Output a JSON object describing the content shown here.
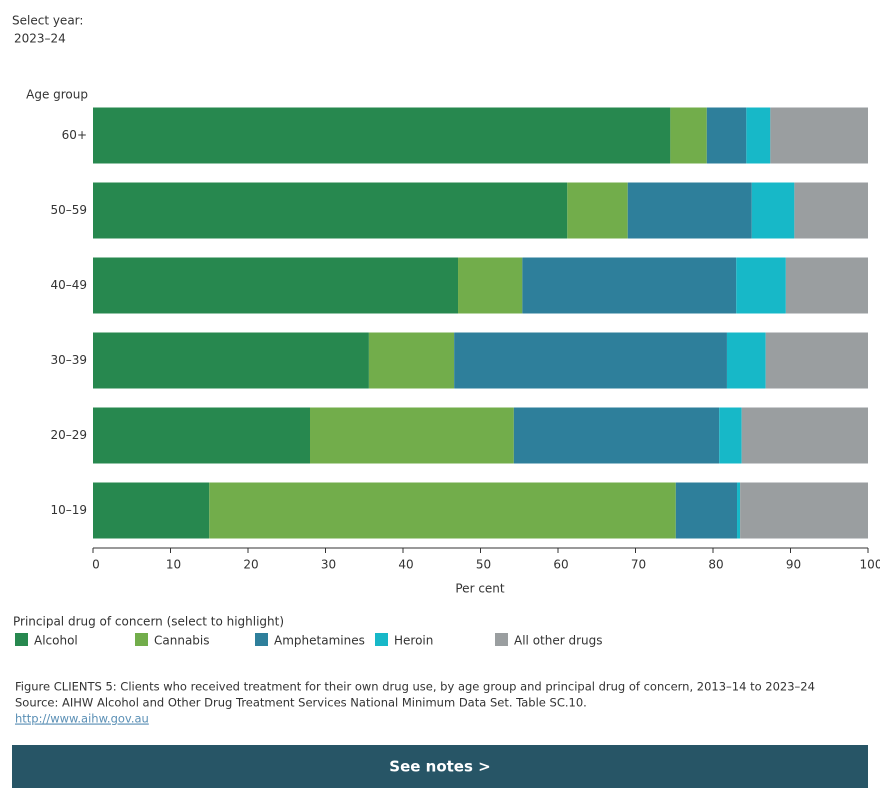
{
  "selector": {
    "label": "Select year:",
    "value": "2023–24"
  },
  "chart_data": {
    "type": "stacked_bar_horizontal",
    "ylabel": "Age group",
    "xlabel": "Per cent",
    "categories": [
      "60+",
      "50–59",
      "40–49",
      "30–39",
      "20–29",
      "10–19"
    ],
    "series": [
      {
        "name": "Alcohol",
        "color": "#27884f",
        "values": [
          74.5,
          61.2,
          47.1,
          35.6,
          28.0,
          15.0
        ]
      },
      {
        "name": "Cannabis",
        "color": "#72ad4b",
        "values": [
          4.7,
          7.8,
          8.3,
          11.0,
          26.3,
          60.2
        ]
      },
      {
        "name": "Amphetamines",
        "color": "#2e7f9b",
        "values": [
          5.1,
          16.0,
          27.6,
          35.2,
          26.5,
          7.9
        ]
      },
      {
        "name": "Heroin",
        "color": "#17b8c8",
        "values": [
          3.1,
          5.5,
          6.4,
          5.0,
          2.9,
          0.4
        ]
      },
      {
        "name": "All other drugs",
        "color": "#9a9ea0",
        "values": [
          12.6,
          9.5,
          10.6,
          13.2,
          16.3,
          16.5
        ]
      }
    ],
    "xlim": [
      0,
      100
    ],
    "xticks": [
      0,
      10,
      20,
      30,
      40,
      50,
      60,
      70,
      80,
      90,
      100
    ],
    "legend_title": "Principal drug of concern (select to highlight)"
  },
  "footer": {
    "caption": "Figure CLIENTS 5: Clients who received treatment for their own drug use, by age group and principal drug of concern, 2013–14 to 2023–24",
    "source": "Source: AIHW Alcohol and Other Drug Treatment Services National Minimum Data Set. Table SC.10.",
    "link": "http://www.aihw.gov.au"
  },
  "button": "See notes >"
}
